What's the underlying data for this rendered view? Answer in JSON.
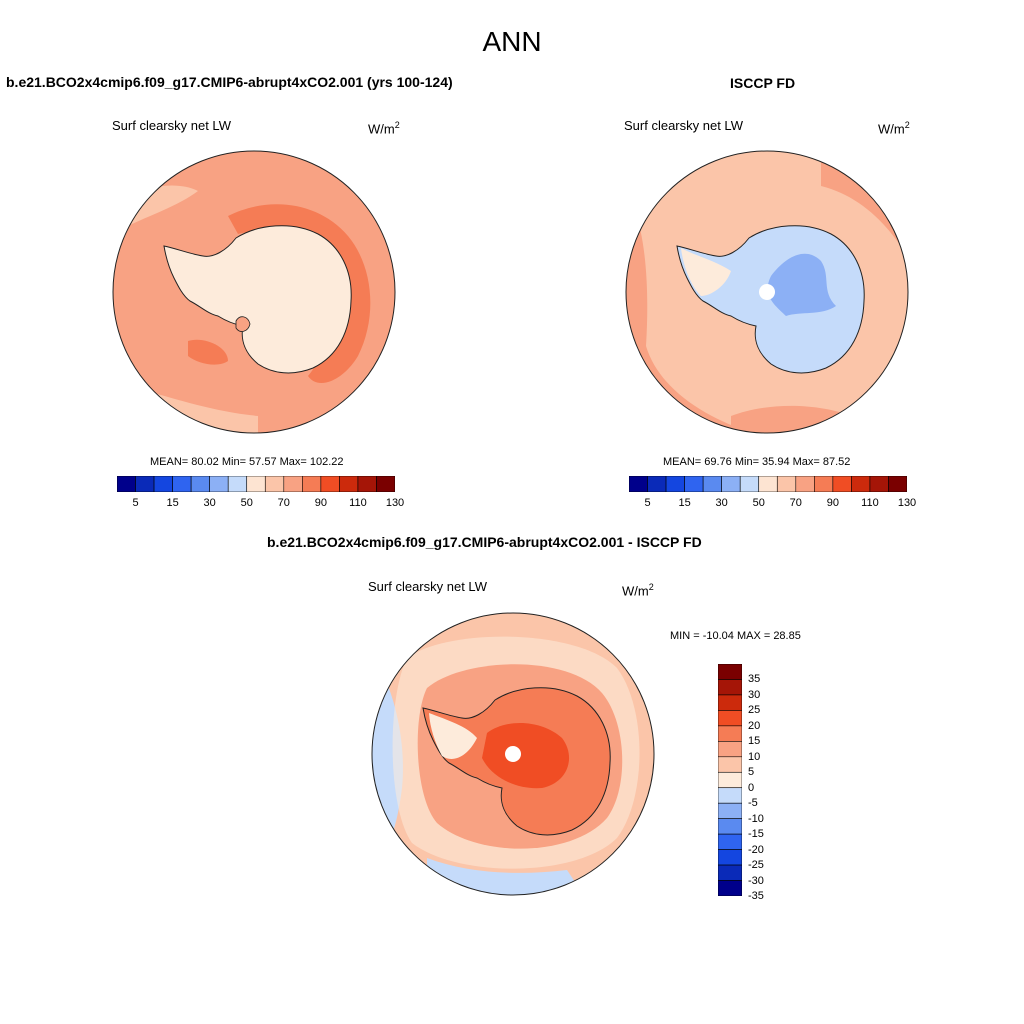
{
  "title": "ANN",
  "units_base": "W/m",
  "units_exp": "2",
  "panels": {
    "model": {
      "title": "b.e21.BCO2x4cmip6.f09_g17.CMIP6-abrupt4xCO2.001 (yrs 100-124)",
      "var": "Surf clearsky net LW",
      "stats": "MEAN=  80.02  Min=  57.57  Max= 102.22"
    },
    "obs": {
      "title": "ISCCP FD",
      "var": "Surf clearsky net LW",
      "stats": "MEAN=  69.76  Min=  35.94  Max=  87.52"
    },
    "diff": {
      "title": "b.e21.BCO2x4cmip6.f09_g17.CMIP6-abrupt4xCO2.001 - ISCCP FD",
      "var": "Surf clearsky net LW",
      "stats": "MIN = -10.04 MAX =  28.85"
    }
  },
  "colorbar_abs": {
    "colors": [
      "#00008b",
      "#0a2ab8",
      "#1446e0",
      "#2f64f0",
      "#5a8af0",
      "#8cb0f5",
      "#c5dbfa",
      "#fde4d2",
      "#fbc5a9",
      "#f8a283",
      "#f57c55",
      "#f04d24",
      "#cc2a0c",
      "#a51507",
      "#7a0000"
    ],
    "tick_labels": [
      "5",
      "15",
      "30",
      "50",
      "70",
      "90",
      "110",
      "130"
    ],
    "tick_boundaries": [
      1,
      3,
      5,
      7,
      9,
      11,
      13,
      15
    ]
  },
  "colorbar_diff": {
    "colors": [
      "#00008b",
      "#0a2ab8",
      "#1446e0",
      "#2f64f0",
      "#5a8af0",
      "#8cb0f5",
      "#c5dbfa",
      "#fdebdb",
      "#fbc5a9",
      "#f8a283",
      "#f57c55",
      "#f04d24",
      "#cc2a0c",
      "#a51507",
      "#7a0000"
    ],
    "tick_labels": [
      "35",
      "30",
      "25",
      "20",
      "15",
      "10",
      "5",
      "0",
      "-5",
      "-10",
      "-15",
      "-20",
      "-25",
      "-30",
      "-35"
    ]
  },
  "chart_data": [
    {
      "type": "heatmap",
      "projection": "south-polar-stereographic",
      "title": "b.e21.BCO2x4cmip6.f09_g17.CMIP6-abrupt4xCO2.001 (yrs 100-124)",
      "variable": "Surf clearsky net LW",
      "units": "W/m2",
      "mean": 80.02,
      "min": 57.57,
      "max": 102.22,
      "levels": [
        5,
        10,
        15,
        20,
        30,
        40,
        50,
        60,
        70,
        80,
        90,
        100,
        110,
        120,
        130
      ]
    },
    {
      "type": "heatmap",
      "projection": "south-polar-stereographic",
      "title": "ISCCP FD",
      "variable": "Surf clearsky net LW",
      "units": "W/m2",
      "mean": 69.76,
      "min": 35.94,
      "max": 87.52,
      "levels": [
        5,
        10,
        15,
        20,
        30,
        40,
        50,
        60,
        70,
        80,
        90,
        100,
        110,
        120,
        130
      ]
    },
    {
      "type": "heatmap",
      "projection": "south-polar-stereographic",
      "title": "b.e21.BCO2x4cmip6.f09_g17.CMIP6-abrupt4xCO2.001 - ISCCP FD",
      "variable": "Surf clearsky net LW",
      "units": "W/m2",
      "min": -10.04,
      "max": 28.85,
      "levels": [
        -35,
        -30,
        -25,
        -20,
        -15,
        -10,
        -5,
        0,
        5,
        10,
        15,
        20,
        25,
        30,
        35
      ]
    }
  ]
}
